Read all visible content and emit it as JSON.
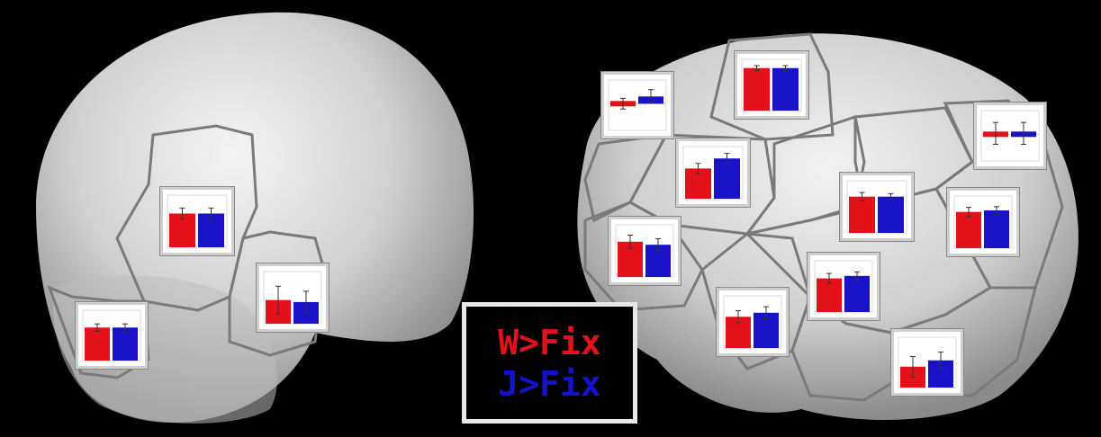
{
  "legend": {
    "w_label": "W>Fix",
    "j_label": "J>Fix"
  },
  "colors": {
    "w": "#e3121a",
    "j": "#1a12c8",
    "background": "#000000",
    "plot_frame": "#cfcfcf"
  },
  "plots": [
    {
      "id": "left-lateral-1",
      "w": 0.67,
      "j": 0.67,
      "w_err": 0.22,
      "j_err": 0.22
    },
    {
      "id": "left-lateral-2",
      "w": 0.47,
      "j": 0.43,
      "w_err": 0.55,
      "j_err": 0.43
    },
    {
      "id": "left-lateral-3",
      "w": 0.68,
      "j": 0.68,
      "w_err": 0.15,
      "j_err": 0.15
    },
    {
      "id": "right-1",
      "w": 0.0,
      "j": 0.33,
      "w_err": 0.22,
      "j_err": 0.28,
      "baseline": 0.45
    },
    {
      "id": "right-2",
      "w": 0.86,
      "j": 0.86,
      "w_err": 0.1,
      "j_err": 0.1
    },
    {
      "id": "right-3",
      "w": 0.6,
      "j": 0.8,
      "w_err": 0.2,
      "j_err": 0.2
    },
    {
      "id": "right-4",
      "w": 0.04,
      "j": 0.04,
      "w_err": 0.45,
      "j_err": 0.45,
      "baseline": 0.45
    },
    {
      "id": "right-5",
      "w": 0.72,
      "j": 0.72,
      "w_err": 0.16,
      "j_err": 0.12
    },
    {
      "id": "right-6",
      "w": 0.72,
      "j": 0.75,
      "w_err": 0.18,
      "j_err": 0.15
    },
    {
      "id": "right-7",
      "w": 0.7,
      "j": 0.64,
      "w_err": 0.26,
      "j_err": 0.24
    },
    {
      "id": "right-8",
      "w": 0.68,
      "j": 0.73,
      "w_err": 0.2,
      "j_err": 0.16
    },
    {
      "id": "right-9",
      "w": 0.62,
      "j": 0.7,
      "w_err": 0.24,
      "j_err": 0.24
    },
    {
      "id": "right-10",
      "w": 0.43,
      "j": 0.56,
      "w_err": 0.42,
      "j_err": 0.34
    }
  ]
}
